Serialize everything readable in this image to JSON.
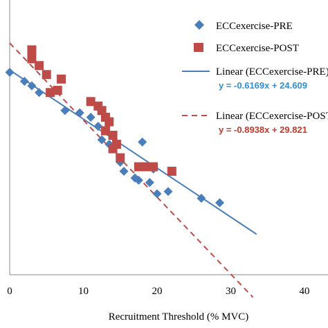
{
  "chart_data": {
    "type": "scatter",
    "xlabel": "Recruitment Threshold (% MVC)",
    "xlim": [
      0,
      40
    ],
    "x_ticks": [
      "0",
      "10",
      "20",
      "30",
      "40"
    ],
    "ylim": [
      0,
      1
    ],
    "y_axis_labels_visible": false,
    "grid": false,
    "legend_position": "top-right",
    "colors": {
      "pre": "#4a7ebb",
      "post": "#be4b48",
      "pre_eq": "#2f8fd6",
      "post_eq": "#c0392b"
    },
    "legend": {
      "pre_label": "ECCexercise-PRE",
      "post_label": "ECCexercise-POST",
      "pre_fit_label": "Linear (ECCexercise-PRE)",
      "post_fit_label": "Linear (ECCexercise-POST)",
      "pre_equation": "y = -0.6169x + 24.609",
      "post_equation": "y = -0.8938x + 29.821"
    },
    "series": [
      {
        "name": "ECCexercise-PRE",
        "marker": "diamond",
        "points": [
          [
            0.0,
            0.9
          ],
          [
            2.0,
            0.86
          ],
          [
            3.0,
            0.84
          ],
          [
            4.0,
            0.81
          ],
          [
            7.5,
            0.73
          ],
          [
            9.5,
            0.72
          ],
          [
            11.0,
            0.7
          ],
          [
            12.0,
            0.66
          ],
          [
            12.5,
            0.6
          ],
          [
            13.5,
            0.58
          ],
          [
            15.0,
            0.5
          ],
          [
            15.5,
            0.46
          ],
          [
            17.0,
            0.43
          ],
          [
            17.5,
            0.42
          ],
          [
            18.0,
            0.59
          ],
          [
            18.5,
            0.48
          ],
          [
            19.0,
            0.41
          ],
          [
            19.5,
            0.47
          ],
          [
            20.0,
            0.36
          ],
          [
            21.5,
            0.37
          ],
          [
            26.0,
            0.34
          ],
          [
            28.5,
            0.32
          ]
        ]
      },
      {
        "name": "ECCexercise-POST",
        "marker": "square",
        "points": [
          [
            3.0,
            1.0
          ],
          [
            3.0,
            0.96
          ],
          [
            4.0,
            0.93
          ],
          [
            5.0,
            0.89
          ],
          [
            5.5,
            0.81
          ],
          [
            6.5,
            0.82
          ],
          [
            7.0,
            0.87
          ],
          [
            11.0,
            0.77
          ],
          [
            12.0,
            0.75
          ],
          [
            12.5,
            0.73
          ],
          [
            13.0,
            0.7
          ],
          [
            13.5,
            0.68
          ],
          [
            13.0,
            0.64
          ],
          [
            14.0,
            0.62
          ],
          [
            14.5,
            0.58
          ],
          [
            14.0,
            0.56
          ],
          [
            15.0,
            0.52
          ],
          [
            17.5,
            0.48
          ],
          [
            18.5,
            0.48
          ],
          [
            19.5,
            0.48
          ],
          [
            22.0,
            0.46
          ]
        ]
      }
    ],
    "fits": [
      {
        "name": "Linear (ECCexercise-PRE)",
        "style": "solid",
        "x": [
          0,
          33.5
        ],
        "y": [
          0.91,
          0.18
        ]
      },
      {
        "name": "Linear (ECCexercise-POST)",
        "style": "dashed",
        "x": [
          0,
          33.0
        ],
        "y": [
          1.03,
          -0.1
        ]
      }
    ]
  }
}
